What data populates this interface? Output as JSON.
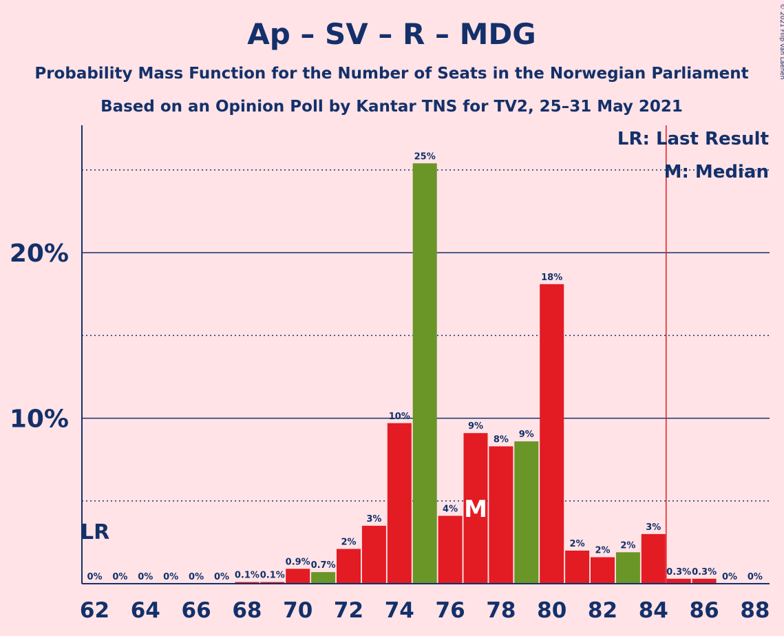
{
  "chart_data": {
    "type": "bar",
    "title": "Ap – SV – R – MDG",
    "subtitle1": "Probability Mass Function for the Number of Seats in the Norwegian Parliament",
    "subtitle2": "Based on an Opinion Poll by Kantar TNS for TV2, 25–31 May 2021",
    "copyright": "© 2021 Filip van Laenen",
    "xlabel": "",
    "ylabel": "",
    "ylim": [
      0,
      27.7
    ],
    "y_major_ticks": [
      10,
      20
    ],
    "y_major_tick_labels": [
      "10%",
      "20%"
    ],
    "y_minor_ticks": [
      5,
      15,
      25
    ],
    "x_tick_labels": [
      "62",
      "64",
      "66",
      "68",
      "70",
      "72",
      "74",
      "76",
      "78",
      "80",
      "82",
      "84",
      "86",
      "88"
    ],
    "x_tick_values": [
      62,
      64,
      66,
      68,
      70,
      72,
      74,
      76,
      78,
      80,
      82,
      84,
      86,
      88
    ],
    "categories": [
      62,
      63,
      64,
      65,
      66,
      67,
      68,
      69,
      70,
      71,
      72,
      73,
      74,
      75,
      76,
      77,
      78,
      79,
      80,
      81,
      82,
      83,
      84,
      85,
      86,
      87,
      88
    ],
    "values": [
      0,
      0,
      0,
      0,
      0,
      0,
      0.1,
      0.1,
      0.9,
      0.7,
      2.1,
      3.5,
      9.7,
      25.4,
      4.1,
      9.1,
      8.3,
      8.6,
      18.1,
      2.0,
      1.6,
      1.9,
      3.0,
      0.3,
      0.3,
      0,
      0
    ],
    "labels": [
      "0%",
      "0%",
      "0%",
      "0%",
      "0%",
      "0%",
      "0.1%",
      "0.1%",
      "0.9%",
      "0.7%",
      "2%",
      "3%",
      "10%",
      "25%",
      "4%",
      "9%",
      "8%",
      "9%",
      "18%",
      "2%",
      "2%",
      "2%",
      "3%",
      "0.3%",
      "0.3%",
      "0%",
      "0%"
    ],
    "bar_colors": [
      "#E31B23",
      "#E31B23",
      "#E31B23",
      "#E31B23",
      "#E31B23",
      "#E31B23",
      "#E31B23",
      "#E31B23",
      "#E31B23",
      "#6A9527",
      "#E31B23",
      "#E31B23",
      "#E31B23",
      "#6A9527",
      "#E31B23",
      "#E31B23",
      "#E31B23",
      "#6A9527",
      "#E31B23",
      "#E31B23",
      "#E31B23",
      "#6A9527",
      "#E31B23",
      "#E31B23",
      "#E31B23",
      "#E31B23",
      "#E31B23"
    ],
    "last_result_seat": 62,
    "last_result_label": "LR",
    "majority_line_seat": 84.5,
    "median_seat": 77,
    "median_label": "M",
    "legend": [
      "LR: Last Result",
      "M: Median"
    ],
    "legend_position": "top-right",
    "colors": {
      "background": "#FFE3E6",
      "text": "#13306A",
      "red": "#E31B23",
      "green": "#6A9527",
      "line": "#E31B23"
    }
  }
}
